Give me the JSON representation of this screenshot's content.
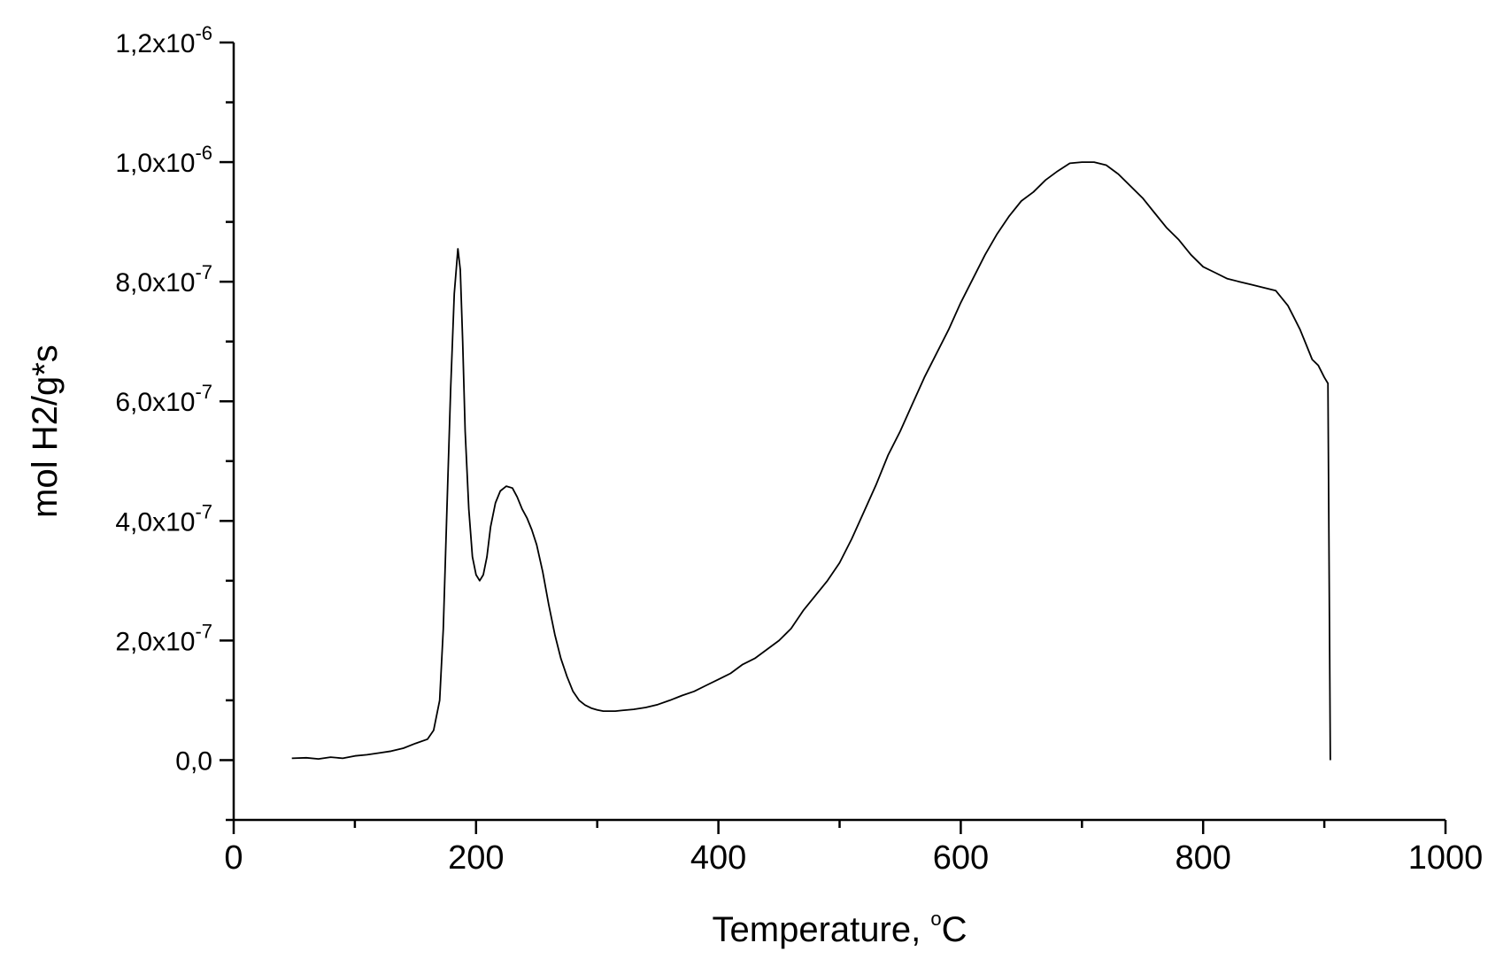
{
  "chart_data": {
    "type": "line",
    "xlabel": "Temperature, ",
    "xlabel_unit_super": "o",
    "xlabel_unit": "C",
    "ylabel": "mol H2/g*s",
    "xlim": [
      0,
      1000
    ],
    "ylim": [
      -1e-07,
      1.2e-06
    ],
    "grid": false,
    "legend": "none",
    "line_color": "#000000",
    "x_ticks": [
      {
        "value": 0,
        "label": "0"
      },
      {
        "value": 200,
        "label": "200"
      },
      {
        "value": 400,
        "label": "400"
      },
      {
        "value": 600,
        "label": "600"
      },
      {
        "value": 800,
        "label": "800"
      },
      {
        "value": 1000,
        "label": "1000"
      }
    ],
    "y_ticks": [
      {
        "value": 0,
        "base": "0,0",
        "exp": ""
      },
      {
        "value": 2e-07,
        "base": "2,0x10",
        "exp": "-7"
      },
      {
        "value": 4e-07,
        "base": "4,0x10",
        "exp": "-7"
      },
      {
        "value": 6e-07,
        "base": "6,0x10",
        "exp": "-7"
      },
      {
        "value": 8e-07,
        "base": "8,0x10",
        "exp": "-7"
      },
      {
        "value": 1e-06,
        "base": "1,0x10",
        "exp": "-6"
      },
      {
        "value": 1.2e-06,
        "base": "1,2x10",
        "exp": "-6"
      }
    ],
    "series": [
      {
        "x": [
          48,
          60,
          70,
          80,
          90,
          100,
          110,
          120,
          130,
          140,
          150,
          160,
          165,
          170,
          173,
          176,
          179,
          182,
          185,
          187,
          189,
          191,
          194,
          197,
          200,
          203,
          206,
          209,
          212,
          216,
          220,
          225,
          230,
          234,
          238,
          242,
          246,
          250,
          255,
          260,
          265,
          270,
          275,
          280,
          285,
          290,
          295,
          300,
          305,
          310,
          315,
          320,
          330,
          340,
          350,
          360,
          370,
          380,
          390,
          400,
          410,
          420,
          430,
          440,
          450,
          460,
          470,
          480,
          490,
          500,
          510,
          520,
          530,
          540,
          550,
          560,
          570,
          580,
          590,
          600,
          610,
          620,
          630,
          640,
          650,
          660,
          670,
          680,
          690,
          700,
          710,
          720,
          730,
          740,
          750,
          760,
          770,
          780,
          790,
          800,
          810,
          820,
          830,
          840,
          850,
          860,
          870,
          875,
          880,
          885,
          890,
          895,
          900,
          903,
          905
        ],
        "y": [
          3e-09,
          4e-09,
          2e-09,
          5e-09,
          3e-09,
          7e-09,
          9e-09,
          1.2e-08,
          1.5e-08,
          2e-08,
          2.8e-08,
          3.5e-08,
          5e-08,
          1e-07,
          2.2e-07,
          4.2e-07,
          6.2e-07,
          7.8e-07,
          8.55e-07,
          8.2e-07,
          7e-07,
          5.5e-07,
          4.2e-07,
          3.4e-07,
          3.1e-07,
          3e-07,
          3.1e-07,
          3.4e-07,
          3.9e-07,
          4.3e-07,
          4.5e-07,
          4.58e-07,
          4.55e-07,
          4.4e-07,
          4.2e-07,
          4.05e-07,
          3.85e-07,
          3.6e-07,
          3.15e-07,
          2.6e-07,
          2.1e-07,
          1.7e-07,
          1.4e-07,
          1.15e-07,
          1e-07,
          9.2e-08,
          8.7e-08,
          8.4e-08,
          8.2e-08,
          8.2e-08,
          8.2e-08,
          8.3e-08,
          8.5e-08,
          8.8e-08,
          9.3e-08,
          1e-07,
          1.08e-07,
          1.15e-07,
          1.25e-07,
          1.35e-07,
          1.45e-07,
          1.6e-07,
          1.7e-07,
          1.85e-07,
          2e-07,
          2.2e-07,
          2.5e-07,
          2.75e-07,
          3e-07,
          3.3e-07,
          3.7e-07,
          4.15e-07,
          4.6e-07,
          5.1e-07,
          5.5e-07,
          5.95e-07,
          6.4e-07,
          6.8e-07,
          7.2e-07,
          7.65e-07,
          8.05e-07,
          8.45e-07,
          8.8e-07,
          9.1e-07,
          9.35e-07,
          9.5e-07,
          9.7e-07,
          9.85e-07,
          9.98e-07,
          1e-06,
          1e-06,
          9.95e-07,
          9.8e-07,
          9.6e-07,
          9.4e-07,
          9.15e-07,
          8.9e-07,
          8.7e-07,
          8.45e-07,
          8.25e-07,
          8.15e-07,
          8.05e-07,
          8e-07,
          7.95e-07,
          7.9e-07,
          7.85e-07,
          7.6e-07,
          7.4e-07,
          7.2e-07,
          6.95e-07,
          6.7e-07,
          6.6e-07,
          6.4e-07,
          6.3e-07,
          0.0
        ]
      }
    ]
  }
}
